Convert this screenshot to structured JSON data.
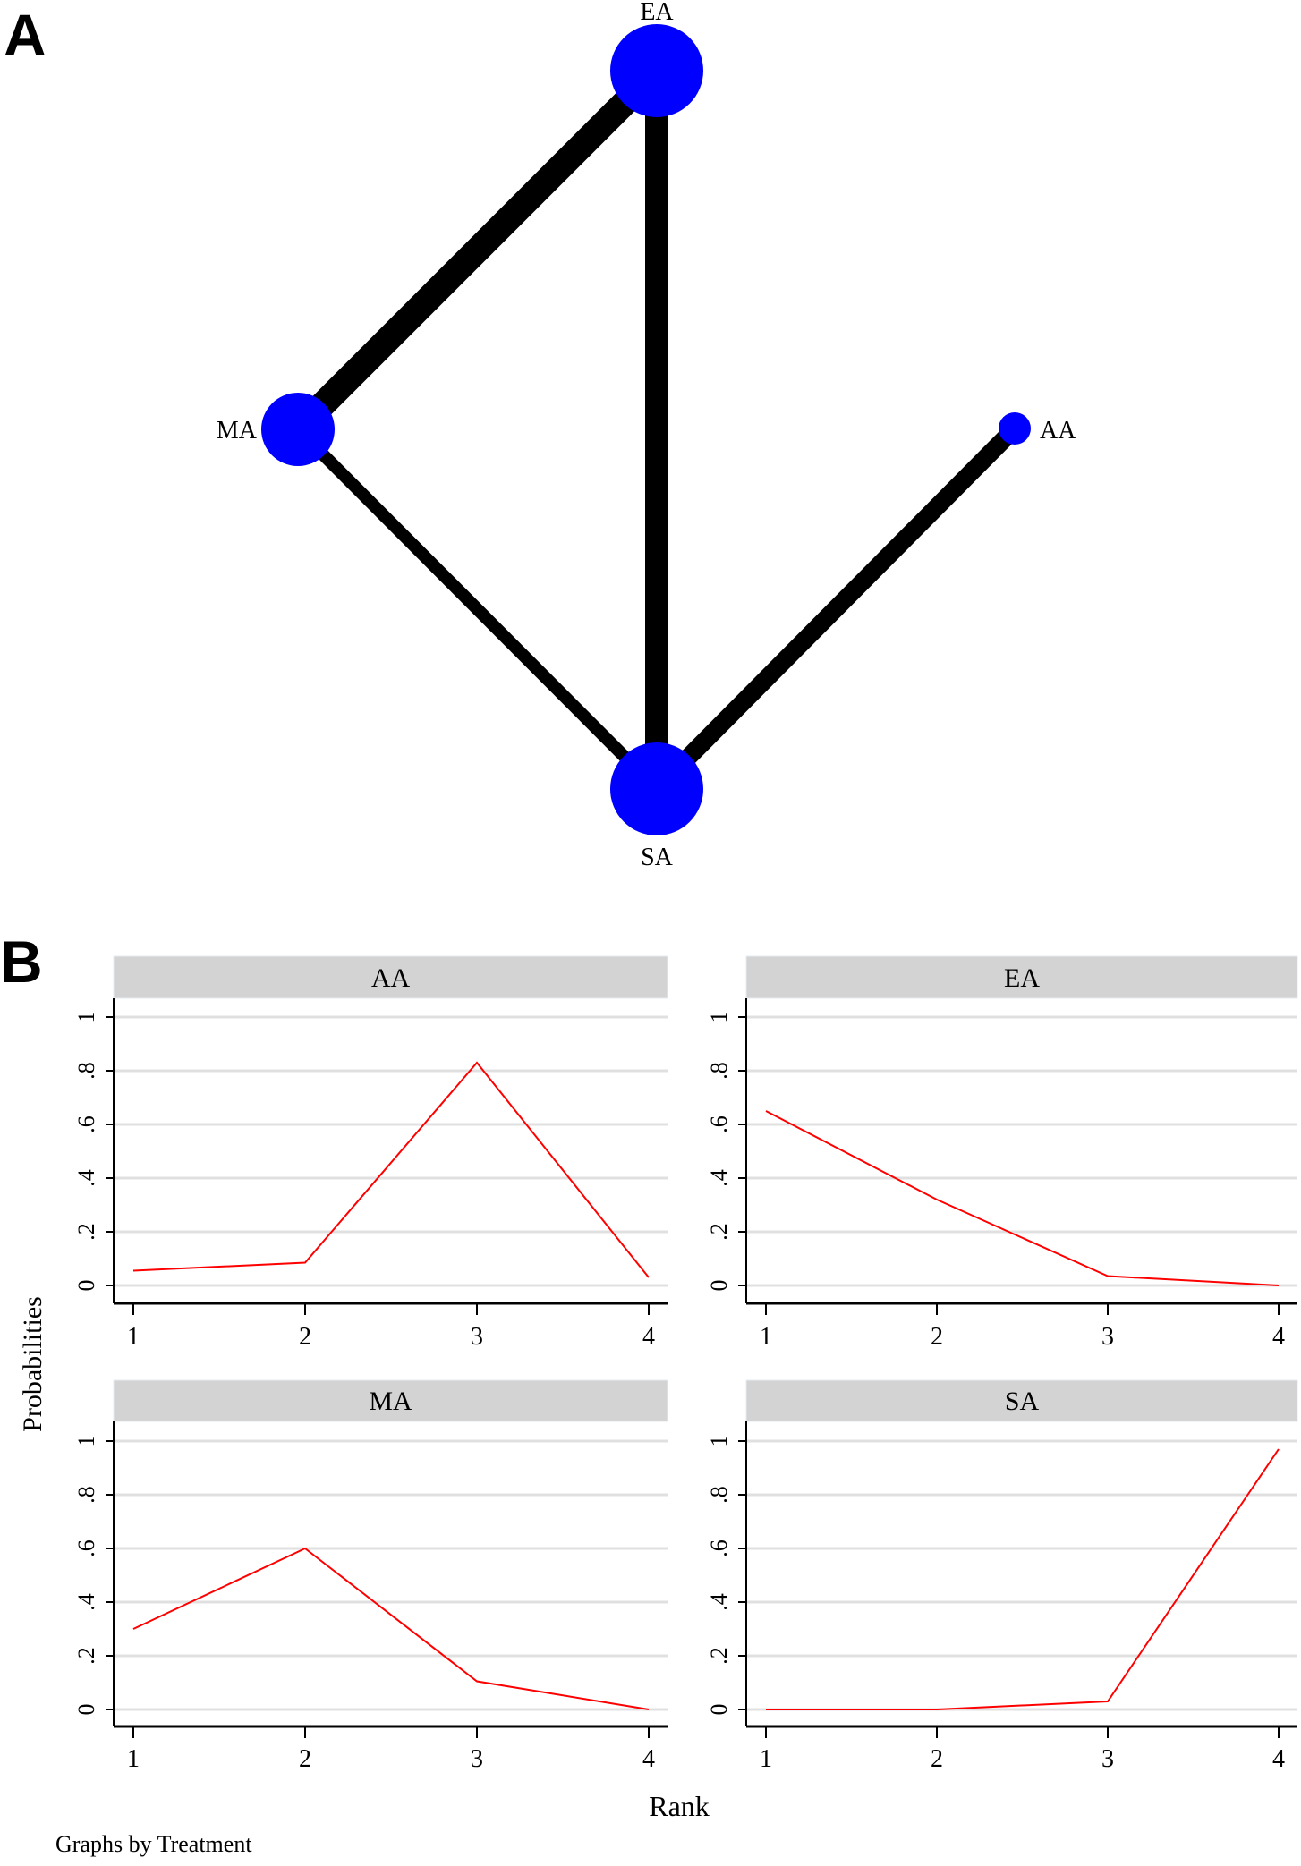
{
  "chart_data": [
    {
      "type": "network",
      "panel_label": "A",
      "nodes": [
        {
          "id": "EA",
          "label": "EA",
          "size": "large"
        },
        {
          "id": "MA",
          "label": "MA",
          "size": "medium"
        },
        {
          "id": "AA",
          "label": "AA",
          "size": "small"
        },
        {
          "id": "SA",
          "label": "SA",
          "size": "large"
        }
      ],
      "edges": [
        {
          "from": "EA",
          "to": "MA",
          "weight": "thickest"
        },
        {
          "from": "EA",
          "to": "SA",
          "weight": "thick"
        },
        {
          "from": "SA",
          "to": "AA",
          "weight": "medium"
        },
        {
          "from": "MA",
          "to": "SA",
          "weight": "thin"
        }
      ],
      "node_color": "#0000ff",
      "edge_color": "#000000"
    },
    {
      "type": "line",
      "panel_label": "B",
      "ylabel": "Probabilities",
      "xlabel": "Rank",
      "note": "Graphs by Treatment",
      "x": [
        1,
        2,
        3,
        4
      ],
      "x_tick_labels": [
        "1",
        "2",
        "3",
        "4"
      ],
      "y_tick_labels": [
        "0",
        ".2",
        ".4",
        ".6",
        ".8",
        "1"
      ],
      "ylim": [
        0,
        1
      ],
      "grid": true,
      "line_color": "#ff0000",
      "strip_color": "#d3d3d3",
      "series": [
        {
          "name": "AA",
          "values": [
            0.055,
            0.085,
            0.83,
            0.03
          ]
        },
        {
          "name": "EA",
          "values": [
            0.65,
            0.32,
            0.035,
            0.0
          ]
        },
        {
          "name": "MA",
          "values": [
            0.3,
            0.6,
            0.105,
            0.0
          ]
        },
        {
          "name": "SA",
          "values": [
            0.0,
            0.0,
            0.03,
            0.97
          ]
        }
      ]
    }
  ]
}
